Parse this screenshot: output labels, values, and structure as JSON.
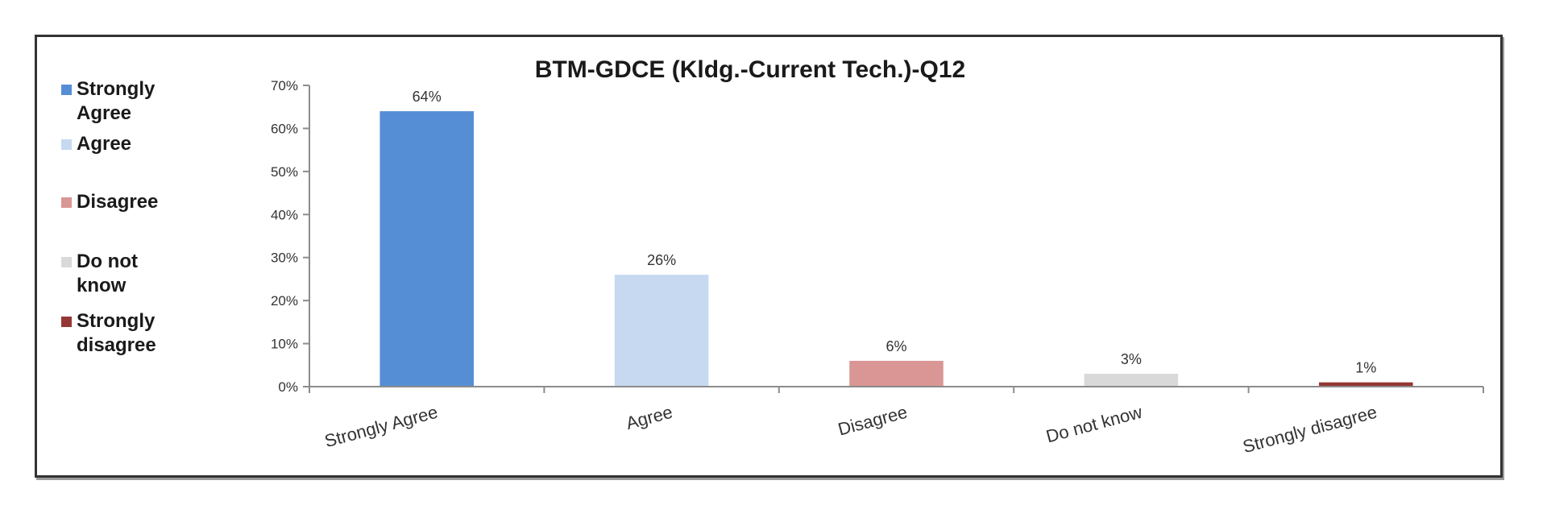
{
  "chart_data": {
    "type": "bar",
    "title": "BTM-GDCE (Kldg.-Current Tech.)-Q12",
    "categories": [
      "Strongly Agree",
      "Agree",
      "Disagree",
      "Do not know",
      "Strongly disagree"
    ],
    "values": [
      64,
      26,
      6,
      3,
      1
    ],
    "data_labels": [
      "64%",
      "26%",
      "6%",
      "3%",
      "1%"
    ],
    "colors": [
      "#558ed5",
      "#c6d9f1",
      "#d99694",
      "#d9d9d9",
      "#953735"
    ],
    "y_ticks": [
      0,
      10,
      20,
      30,
      40,
      50,
      60,
      70
    ],
    "y_tick_labels": [
      "0%",
      "10%",
      "20%",
      "30%",
      "40%",
      "50%",
      "60%",
      "70%"
    ],
    "ylim": [
      0,
      70
    ],
    "xlabel": "",
    "ylabel": "",
    "grid": false,
    "legend": {
      "position": "left",
      "entries": [
        {
          "lines": [
            "Strongly",
            "Agree"
          ],
          "color": "#558ed5"
        },
        {
          "lines": [
            " Agree"
          ],
          "color": "#c6d9f1"
        },
        {
          "lines": [
            "Disagree"
          ],
          "color": "#d99694"
        },
        {
          "lines": [
            "Do not",
            "know"
          ],
          "color": "#d9d9d9"
        },
        {
          "lines": [
            "Strongly",
            "disagree"
          ],
          "color": "#953735"
        }
      ]
    }
  }
}
